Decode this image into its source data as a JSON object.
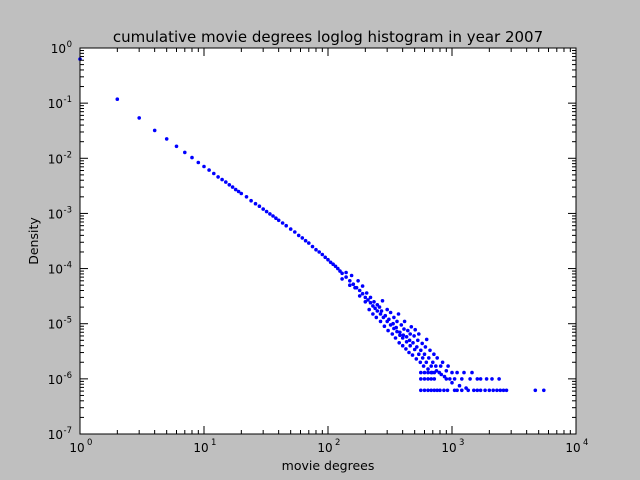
{
  "chart_data": {
    "type": "scatter",
    "title": "cumulative movie degrees loglog histogram in year 2007",
    "xlabel": "movie degrees",
    "ylabel": "Density",
    "xscale": "log",
    "yscale": "log",
    "xlim": [
      1,
      10000
    ],
    "ylim": [
      1e-07,
      1
    ],
    "grid": false,
    "marker_color": "#0000ff",
    "x_ticks": [
      {
        "base": "10",
        "exp": "0",
        "value": 1
      },
      {
        "base": "10",
        "exp": "1",
        "value": 10
      },
      {
        "base": "10",
        "exp": "2",
        "value": 100
      },
      {
        "base": "10",
        "exp": "3",
        "value": 1000
      },
      {
        "base": "10",
        "exp": "4",
        "value": 10000
      }
    ],
    "y_ticks": [
      {
        "base": "10",
        "exp": "0",
        "value": 1
      },
      {
        "base": "10",
        "exp": "-1",
        "value": 0.1
      },
      {
        "base": "10",
        "exp": "-2",
        "value": 0.01
      },
      {
        "base": "10",
        "exp": "-3",
        "value": 0.001
      },
      {
        "base": "10",
        "exp": "-4",
        "value": 0.0001
      },
      {
        "base": "10",
        "exp": "-5",
        "value": 1e-05
      },
      {
        "base": "10",
        "exp": "-6",
        "value": 1e-06
      },
      {
        "base": "10",
        "exp": "-7",
        "value": 1e-07
      }
    ],
    "series": [
      {
        "points": [
          [
            1,
            0.63
          ],
          [
            2,
            0.118
          ],
          [
            3,
            0.054
          ],
          [
            4,
            0.032
          ],
          [
            5,
            0.0225
          ],
          [
            6,
            0.0165
          ],
          [
            7,
            0.0128
          ],
          [
            8,
            0.0103
          ],
          [
            9,
            0.0084
          ],
          [
            10,
            0.0071
          ],
          [
            11,
            0.0061
          ],
          [
            12,
            0.0053
          ],
          [
            13,
            0.0046
          ],
          [
            14,
            0.0041
          ],
          [
            15,
            0.0037
          ],
          [
            16,
            0.0033
          ],
          [
            17,
            0.003
          ],
          [
            18,
            0.0027
          ],
          [
            19,
            0.0025
          ],
          [
            20,
            0.0023
          ],
          [
            22,
            0.002
          ],
          [
            24,
            0.0017
          ],
          [
            26,
            0.0015
          ],
          [
            28,
            0.00135
          ],
          [
            30,
            0.0012
          ],
          [
            32,
            0.00108
          ],
          [
            34,
            0.00098
          ],
          [
            36,
            0.0009
          ],
          [
            38,
            0.00082
          ],
          [
            40,
            0.00075
          ],
          [
            43,
            0.00067
          ],
          [
            46,
            0.0006
          ],
          [
            50,
            0.00052
          ],
          [
            54,
            0.00046
          ],
          [
            58,
            0.0004
          ],
          [
            62,
            0.00036
          ],
          [
            66,
            0.00032
          ],
          [
            70,
            0.00029
          ],
          [
            75,
            0.00025
          ],
          [
            80,
            0.00022
          ],
          [
            85,
            0.0002
          ],
          [
            90,
            0.00018
          ],
          [
            95,
            0.00016
          ],
          [
            100,
            0.000145
          ],
          [
            105,
            0.00013
          ],
          [
            110,
            0.00012
          ],
          [
            115,
            0.00011
          ],
          [
            120,
            0.0001
          ],
          [
            125,
            9e-05
          ],
          [
            130,
            8.2e-05
          ],
          [
            140,
            7e-05
          ],
          [
            150,
            6e-05
          ],
          [
            160,
            5.2e-05
          ],
          [
            170,
            4.5e-05
          ],
          [
            180,
            4e-05
          ],
          [
            190,
            3.5e-05
          ],
          [
            200,
            3e-05
          ],
          [
            210,
            2.7e-05
          ],
          [
            220,
            2.4e-05
          ],
          [
            230,
            2.1e-05
          ],
          [
            240,
            1.9e-05
          ],
          [
            250,
            1.7e-05
          ],
          [
            265,
            1.5e-05
          ],
          [
            280,
            1.3e-05
          ],
          [
            300,
            1.1e-05
          ],
          [
            320,
            9.5e-06
          ],
          [
            340,
            8.2e-06
          ],
          [
            360,
            7.2e-06
          ],
          [
            380,
            6.2e-06
          ],
          [
            400,
            5.5e-06
          ],
          [
            430,
            4.7e-06
          ],
          [
            460,
            4e-06
          ],
          [
            500,
            3.4e-06
          ],
          [
            540,
            2.8e-06
          ],
          [
            580,
            2.4e-06
          ],
          [
            620,
            2e-06
          ],
          [
            680,
            1.7e-06
          ],
          [
            750,
            1.4e-06
          ],
          [
            820,
            1.2e-06
          ],
          [
            900,
            1e-06
          ],
          [
            1000,
            8.5e-07
          ],
          [
            1150,
            7.5e-07
          ],
          [
            1300,
            6.8e-07
          ],
          [
            1500,
            6.2e-07
          ],
          [
            1700,
            6.2e-07
          ],
          [
            2000,
            6.2e-07
          ],
          [
            2300,
            6.2e-07
          ],
          [
            2600,
            6.2e-07
          ],
          [
            4700,
            6.2e-07
          ],
          [
            5500,
            6.2e-07
          ],
          [
            130,
            6.5e-05
          ],
          [
            140,
            8.5e-05
          ],
          [
            150,
            5e-05
          ],
          [
            155,
            7.5e-05
          ],
          [
            165,
            4.5e-05
          ],
          [
            175,
            6e-05
          ],
          [
            180,
            3.2e-05
          ],
          [
            190,
            4.8e-05
          ],
          [
            200,
            2.5e-05
          ],
          [
            205,
            3.6e-05
          ],
          [
            215,
            1.8e-05
          ],
          [
            220,
            3e-05
          ],
          [
            230,
            1.5e-05
          ],
          [
            235,
            2.5e-05
          ],
          [
            245,
            1.3e-05
          ],
          [
            250,
            2.2e-05
          ],
          [
            260,
            2e-05
          ],
          [
            265,
            1.1e-05
          ],
          [
            270,
            1.7e-05
          ],
          [
            275,
            2.6e-05
          ],
          [
            285,
            9e-06
          ],
          [
            290,
            1.4e-05
          ],
          [
            300,
            1.8e-05
          ],
          [
            305,
            7.5e-06
          ],
          [
            310,
            1.2e-05
          ],
          [
            320,
            1.6e-05
          ],
          [
            330,
            6.5e-06
          ],
          [
            335,
            1e-05
          ],
          [
            340,
            1.3e-05
          ],
          [
            350,
            5.5e-06
          ],
          [
            355,
            8.5e-06
          ],
          [
            360,
            1.1e-05
          ],
          [
            370,
            1.5e-05
          ],
          [
            375,
            4.5e-06
          ],
          [
            380,
            7e-06
          ],
          [
            390,
            9.5e-06
          ],
          [
            400,
            4e-06
          ],
          [
            405,
            6.2e-06
          ],
          [
            410,
            8e-06
          ],
          [
            415,
            1.1e-05
          ],
          [
            425,
            3.5e-06
          ],
          [
            430,
            5.8e-06
          ],
          [
            440,
            7.5e-06
          ],
          [
            450,
            3e-06
          ],
          [
            455,
            5e-06
          ],
          [
            460,
            6.5e-06
          ],
          [
            470,
            8.8e-06
          ],
          [
            480,
            2.7e-06
          ],
          [
            485,
            4.5e-06
          ],
          [
            495,
            6e-06
          ],
          [
            505,
            7.8e-06
          ],
          [
            515,
            2.3e-06
          ],
          [
            520,
            3.8e-06
          ],
          [
            530,
            5e-06
          ],
          [
            540,
            6.5e-06
          ],
          [
            555,
            2e-06
          ],
          [
            560,
            3.3e-06
          ],
          [
            575,
            4.4e-06
          ],
          [
            590,
            1.7e-06
          ],
          [
            600,
            2.8e-06
          ],
          [
            610,
            3.8e-06
          ],
          [
            625,
            5.2e-06
          ],
          [
            640,
            1.5e-06
          ],
          [
            650,
            2.4e-06
          ],
          [
            665,
            3.3e-06
          ],
          [
            690,
            1.3e-06
          ],
          [
            700,
            2e-06
          ],
          [
            715,
            2.8e-06
          ],
          [
            740,
            1.7e-06
          ],
          [
            760,
            2.4e-06
          ],
          [
            790,
            1.3e-06
          ],
          [
            810,
            1.7e-06
          ],
          [
            840,
            2e-06
          ],
          [
            870,
            1.1e-06
          ],
          [
            900,
            1.4e-06
          ],
          [
            930,
            1.7e-06
          ],
          [
            960,
            1e-06
          ],
          [
            1000,
            1.3e-06
          ],
          [
            1050,
            1e-06
          ],
          [
            1100,
            1.3e-06
          ],
          [
            1200,
            1e-06
          ],
          [
            1250,
            1.3e-06
          ],
          [
            1400,
            1e-06
          ],
          [
            1450,
            1.3e-06
          ],
          [
            1600,
            1e-06
          ],
          [
            1700,
            1e-06
          ],
          [
            1900,
            1e-06
          ],
          [
            2100,
            1e-06
          ],
          [
            2400,
            1e-06
          ],
          [
            560,
            1.3e-06
          ],
          [
            600,
            1.3e-06
          ],
          [
            640,
            1.3e-06
          ],
          [
            680,
            1.3e-06
          ],
          [
            720,
            1.3e-06
          ],
          [
            560,
            1e-06
          ],
          [
            600,
            1e-06
          ],
          [
            640,
            1e-06
          ],
          [
            680,
            1e-06
          ],
          [
            720,
            1e-06
          ],
          [
            560,
            6.2e-07
          ],
          [
            600,
            6.2e-07
          ],
          [
            640,
            6.2e-07
          ],
          [
            680,
            6.2e-07
          ],
          [
            720,
            6.2e-07
          ],
          [
            760,
            6.2e-07
          ],
          [
            800,
            6.2e-07
          ],
          [
            860,
            6.2e-07
          ],
          [
            920,
            6.2e-07
          ],
          [
            1050,
            6.2e-07
          ],
          [
            1100,
            6.2e-07
          ],
          [
            1200,
            6.2e-07
          ],
          [
            1350,
            6.2e-07
          ],
          [
            1600,
            6.2e-07
          ],
          [
            1850,
            6.2e-07
          ],
          [
            2150,
            6.2e-07
          ],
          [
            2450,
            6.2e-07
          ],
          [
            2750,
            6.2e-07
          ]
        ]
      }
    ]
  }
}
